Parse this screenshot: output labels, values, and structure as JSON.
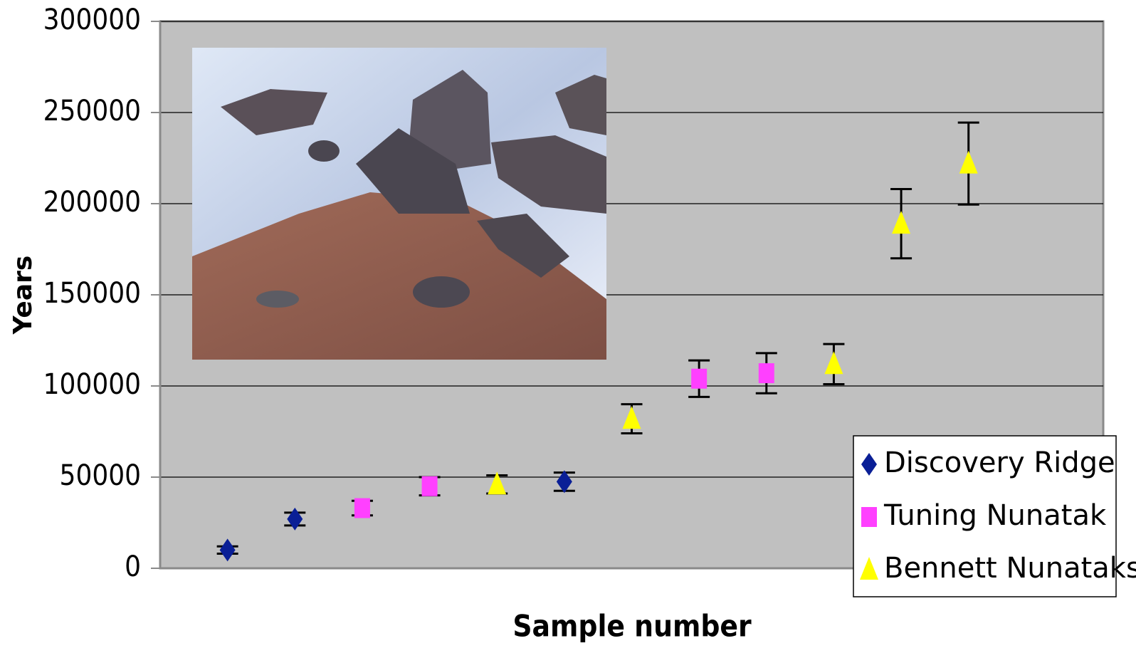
{
  "chart_data": {
    "type": "scatter",
    "y_label": "Years",
    "x_label": "Sample number",
    "categories": [
      null,
      null,
      null,
      null,
      null,
      null,
      null,
      null,
      null,
      null,
      null,
      null
    ],
    "ylim": [
      0,
      300000
    ],
    "yticks": [
      0,
      50000,
      100000,
      150000,
      200000,
      250000,
      300000
    ],
    "grid": true,
    "legend": "lower right",
    "series": [
      {
        "name": "Discovery Ridge",
        "color": "#0a1f96",
        "marker": "diamond",
        "values": [
          10000,
          27000,
          null,
          null,
          null,
          47500,
          null,
          null,
          null,
          null,
          null,
          null
        ],
        "errors": [
          2000,
          3500,
          null,
          null,
          null,
          5000,
          null,
          null,
          null,
          null,
          null,
          null
        ]
      },
      {
        "name": "Tuning Nunatak",
        "color": "#ff40ff",
        "marker": "square",
        "values": [
          null,
          null,
          33000,
          45000,
          null,
          null,
          null,
          104000,
          107000,
          null,
          null,
          null
        ],
        "errors": [
          null,
          null,
          4000,
          5000,
          null,
          null,
          null,
          10000,
          11000,
          null,
          null,
          null
        ]
      },
      {
        "name": "Bennett Nunataks",
        "color": "#ffff00",
        "marker": "triangle",
        "values": [
          null,
          null,
          null,
          null,
          46000,
          null,
          82000,
          null,
          null,
          112000,
          189000,
          222000
        ],
        "errors": [
          null,
          null,
          null,
          null,
          5000,
          null,
          8000,
          null,
          null,
          11000,
          19000,
          22500
        ]
      }
    ]
  }
}
